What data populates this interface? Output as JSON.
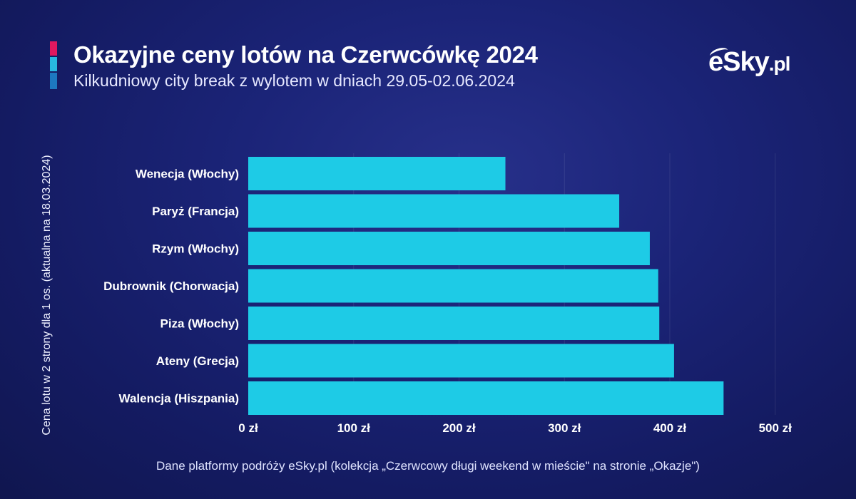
{
  "header": {
    "title": "Okazyjne ceny lotów na Czerwcówkę 2024",
    "subtitle": "Kilkudniowy city break z wylotem w dniach 29.05-02.06.2024",
    "accent_colors": [
      "#e0185f",
      "#28b8e0",
      "#1d78c0"
    ]
  },
  "logo": {
    "brand": "eSky",
    "tld": ".pl"
  },
  "footer": {
    "source": "Dane platformy podróży eSky.pl (kolekcja „Czerwcowy długi weekend w mieście\" na stronie „Okazje\")"
  },
  "chart_data": {
    "type": "bar",
    "orientation": "horizontal",
    "categories": [
      "Wenecja (Włochy)",
      "Paryż (Francja)",
      "Rzym (Włochy)",
      "Dubrownik (Chorwacja)",
      "Piza (Włochy)",
      "Ateny (Grecja)",
      "Walencja (Hiszpania)"
    ],
    "values": [
      244,
      352,
      381,
      389,
      390,
      404,
      451
    ],
    "ylabel": "Cena lotu w 2 strony dla 1 os. (aktualna na 18.03.2024)",
    "xlabel": "",
    "xlim": [
      0,
      500
    ],
    "xticks": [
      0,
      100,
      200,
      300,
      400,
      500
    ],
    "xtick_labels": [
      "0 zł",
      "100 zł",
      "200 zł",
      "300 zł",
      "400 zł",
      "500 zł"
    ],
    "bar_color": "#1ecbe6",
    "grid": true
  }
}
